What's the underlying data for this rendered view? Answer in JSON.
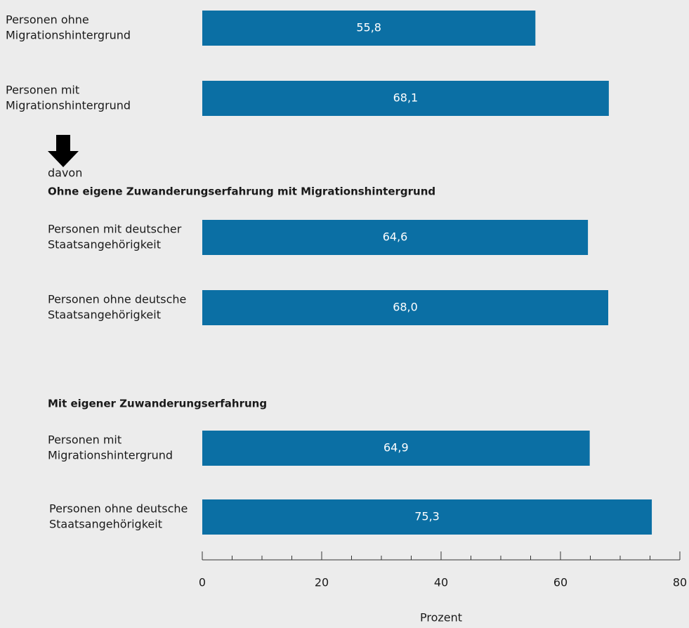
{
  "chart_data": {
    "type": "bar",
    "orientation": "horizontal",
    "categories": [
      [
        "Personen ohne",
        "Migrationshintergrund"
      ],
      [
        "Personen mit",
        "Migrationshintergrund"
      ],
      [
        "Personen mit deutscher",
        "Staatsangehörigkeit"
      ],
      [
        "Personen ohne deutsche",
        "Staatsangehörigkeit"
      ],
      [
        "Personen mit",
        "Migrationshintergrund"
      ],
      [
        "Personen ohne deutsche",
        "Staatsangehörigkeit"
      ]
    ],
    "values": [
      55.8,
      68.1,
      64.6,
      68.0,
      64.9,
      75.3
    ],
    "value_labels": [
      "55,8",
      "68,1",
      "64,6",
      "68,0",
      "64,9",
      "75,3"
    ],
    "color": "#0b6fa4",
    "xlim": [
      0,
      80
    ],
    "xticks": [
      0,
      20,
      40,
      60,
      80
    ],
    "xminor_ticks": [
      5,
      10,
      15,
      25,
      30,
      35,
      45,
      50,
      55,
      65,
      70,
      75
    ],
    "xlabel": "Prozent",
    "annotations": {
      "davon": "davon",
      "group_1": "Ohne eigene Zuwanderungserfahrung mit Migrationshintergrund",
      "group_2": "Mit eigener Zuwanderungserfahrung"
    }
  }
}
